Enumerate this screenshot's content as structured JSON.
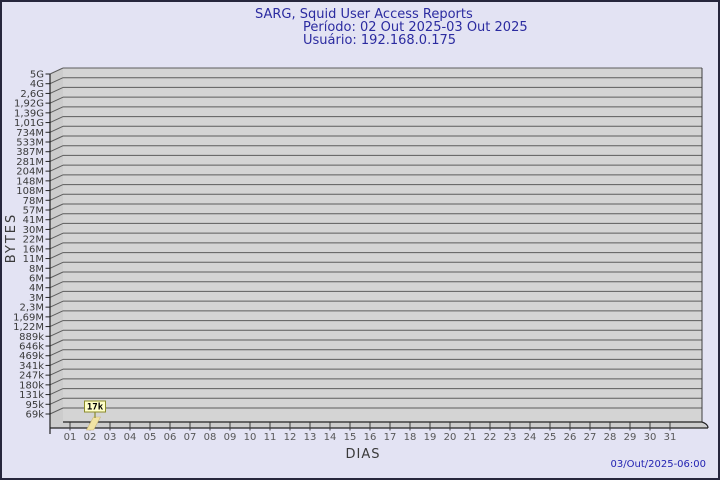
{
  "window": {
    "background": "#e3e3f3",
    "border_color": "#26263c"
  },
  "header": {
    "title": "SARG, Squid User Access Reports",
    "period": "Período: 02 Out 2025-03 Out 2025",
    "user": "Usuário: 192.168.0.175",
    "text_color": "#2b2ba0"
  },
  "footer": {
    "timestamp": "03/Out/2025-06:00",
    "text_color": "#2323b2"
  },
  "chart_data": {
    "type": "bar",
    "title": "SARG, Squid User Access Reports",
    "period": "02 Out 2025-03 Out 2025",
    "user": "192.168.0.175",
    "xlabel": "DIAS",
    "ylabel": "BYTES",
    "y_scale": "logarithmic",
    "grid": true,
    "x_categories": [
      "01",
      "02",
      "03",
      "04",
      "05",
      "06",
      "07",
      "08",
      "09",
      "10",
      "11",
      "12",
      "13",
      "14",
      "15",
      "16",
      "17",
      "18",
      "19",
      "20",
      "21",
      "22",
      "23",
      "24",
      "25",
      "26",
      "27",
      "28",
      "29",
      "30",
      "31"
    ],
    "y_tick_labels": [
      "5G",
      "4G",
      "2,6G",
      "1,92G",
      "1,39G",
      "1,01G",
      "734M",
      "533M",
      "387M",
      "281M",
      "204M",
      "148M",
      "108M",
      "78M",
      "57M",
      "41M",
      "30M",
      "22M",
      "16M",
      "11M",
      "8M",
      "6M",
      "4M",
      "3M",
      "2,3M",
      "1,69M",
      "1,22M",
      "889k",
      "646k",
      "469k",
      "341k",
      "247k",
      "180k",
      "131k",
      "95k",
      "69k"
    ],
    "y_range_labels": [
      "69k",
      "5G"
    ],
    "points": [
      {
        "x": "02",
        "label": "17k",
        "bytes": 17000
      }
    ],
    "colors": {
      "plot_bg": "#d4d4d4",
      "plot_side": "#cccccc",
      "grid": "#5c5c5c",
      "axis": "#222222",
      "edge": "#3f3f3f",
      "tick_text": "#3a3a3a",
      "day_text": "#585858",
      "bar_fill": "#f1e3a4",
      "bar_edge": "#cdb878",
      "flag_bg": "#ffffc9",
      "flag_border": "#8b8b2a",
      "flag_text": "#000000"
    }
  }
}
